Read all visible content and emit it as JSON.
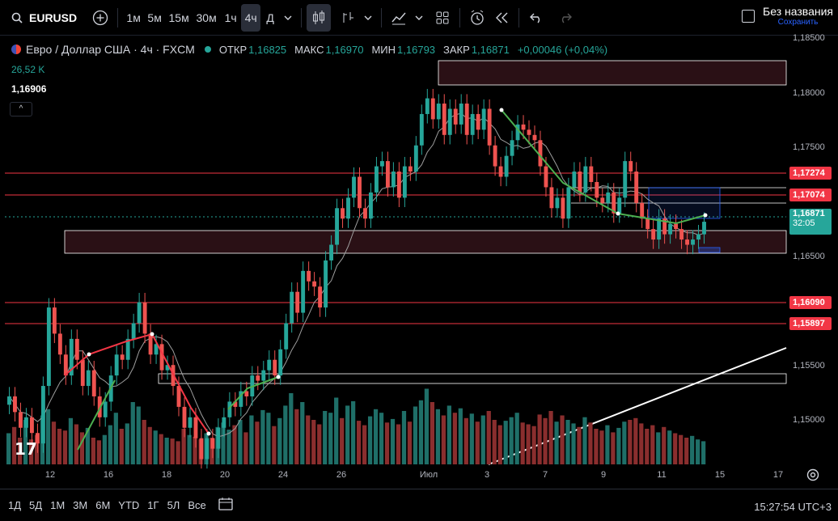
{
  "toolbar": {
    "symbol": "EURUSD",
    "intervals": [
      "1м",
      "5м",
      "15м",
      "30м",
      "1ч",
      "4ч",
      "Д"
    ],
    "active_interval": "4ч",
    "layout_title": "Без названия",
    "layout_sub": "Сохранить"
  },
  "legend": {
    "title": "Евро / Доллар США · 4ч · FXCM",
    "open_label": "ОТКР",
    "open": "1,16825",
    "high_label": "МАКС",
    "high": "1,16970",
    "low_label": "МИН",
    "low": "1,16793",
    "close_label": "ЗАКР",
    "close": "1,16871",
    "change": "+0,00046 (+0,04%)",
    "volume": "26,52 K",
    "indicator": "1,16906",
    "collapse": "^"
  },
  "price_scale": {
    "ticks": [
      "1,18500",
      "1,18000",
      "1,17500",
      "1,16500",
      "1,15500",
      "1,15000"
    ],
    "tags": [
      {
        "value": "1,17274",
        "color": "#f23645"
      },
      {
        "value": "1,17074",
        "color": "#f23645"
      },
      {
        "value": "1,16090",
        "color": "#f23645"
      },
      {
        "value": "1,15897",
        "color": "#f23645"
      }
    ],
    "current": "1,16871",
    "countdown": "32:05"
  },
  "time_axis": [
    "12",
    "16",
    "18",
    "20",
    "24",
    "26",
    "Июл",
    "3",
    "7",
    "9",
    "11",
    "15",
    "17"
  ],
  "bottom": {
    "ranges": [
      "1Д",
      "5Д",
      "1М",
      "3М",
      "6М",
      "YTD",
      "1Г",
      "5Л",
      "Все"
    ],
    "clock": "15:27:54 UTC+3"
  },
  "chart_data": {
    "type": "candlestick",
    "ylim": [
      1.1455,
      1.1865
    ],
    "colors": {
      "up": "#26a69a",
      "down": "#ef5350",
      "vol_up": "#1f6f68",
      "vol_down": "#8a2e2e"
    },
    "closes": [
      1.152,
      1.1505,
      1.149,
      1.15,
      1.1485,
      1.1475,
      1.153,
      1.1605,
      1.158,
      1.156,
      1.154,
      1.1575,
      1.1555,
      1.153,
      1.1545,
      1.152,
      1.15,
      1.1515,
      1.154,
      1.156,
      1.1555,
      1.1575,
      1.159,
      1.161,
      1.158,
      1.156,
      1.157,
      1.1545,
      1.155,
      1.153,
      1.151,
      1.149,
      1.15,
      1.148,
      1.146,
      1.148,
      1.147,
      1.149,
      1.15,
      1.1515,
      1.151,
      1.1525,
      1.152,
      1.154,
      1.1535,
      1.1545,
      1.1555,
      1.154,
      1.1565,
      1.159,
      1.162,
      1.16,
      1.164,
      1.163,
      1.1625,
      1.1605,
      1.165,
      1.1665,
      1.17,
      1.169,
      1.171,
      1.173,
      1.17,
      1.169,
      1.1715,
      1.174,
      1.1745,
      1.172,
      1.1735,
      1.171,
      1.174,
      1.1735,
      1.176,
      1.179,
      1.1805,
      1.1785,
      1.18,
      1.177,
      1.1795,
      1.178,
      1.18,
      1.177,
      1.179,
      1.1775,
      1.1795,
      1.176,
      1.174,
      1.173,
      1.175,
      1.1765,
      1.178,
      1.1775,
      1.177,
      1.1765,
      1.174,
      1.172,
      1.17,
      1.171,
      1.169,
      1.172,
      1.1735,
      1.1715,
      1.174,
      1.1725,
      1.171,
      1.1705,
      1.1715,
      1.1695,
      1.171,
      1.1745,
      1.1735,
      1.1705,
      1.169,
      1.168,
      1.167,
      1.169,
      1.1675,
      1.1685,
      1.168,
      1.167,
      1.1665,
      1.167,
      1.1675,
      1.1687
    ],
    "volumes": [
      0.35,
      0.42,
      0.3,
      0.5,
      0.28,
      0.33,
      0.55,
      0.62,
      0.48,
      0.4,
      0.38,
      0.52,
      0.45,
      0.36,
      0.41,
      0.3,
      0.27,
      0.33,
      0.44,
      0.58,
      0.4,
      0.46,
      0.7,
      0.65,
      0.5,
      0.42,
      0.38,
      0.34,
      0.3,
      0.29,
      0.26,
      0.4,
      0.33,
      0.31,
      0.28,
      0.35,
      0.3,
      0.42,
      0.47,
      0.39,
      0.44,
      0.5,
      0.36,
      0.55,
      0.48,
      0.61,
      0.58,
      0.43,
      0.52,
      0.66,
      0.8,
      0.62,
      0.7,
      0.55,
      0.5,
      0.45,
      0.6,
      0.58,
      0.75,
      0.52,
      0.66,
      0.71,
      0.49,
      0.44,
      0.54,
      0.62,
      0.58,
      0.47,
      0.51,
      0.45,
      0.6,
      0.48,
      0.65,
      0.72,
      0.85,
      0.7,
      0.62,
      0.55,
      0.66,
      0.58,
      0.63,
      0.52,
      0.57,
      0.48,
      0.55,
      0.6,
      0.5,
      0.44,
      0.49,
      0.53,
      0.58,
      0.47,
      0.45,
      0.43,
      0.56,
      0.52,
      0.6,
      0.48,
      0.55,
      0.5,
      0.46,
      0.42,
      0.53,
      0.47,
      0.4,
      0.38,
      0.44,
      0.36,
      0.41,
      0.48,
      0.5,
      0.52,
      0.46,
      0.4,
      0.44,
      0.36,
      0.42,
      0.38,
      0.35,
      0.33,
      0.3,
      0.32,
      0.28,
      0.26
    ]
  }
}
